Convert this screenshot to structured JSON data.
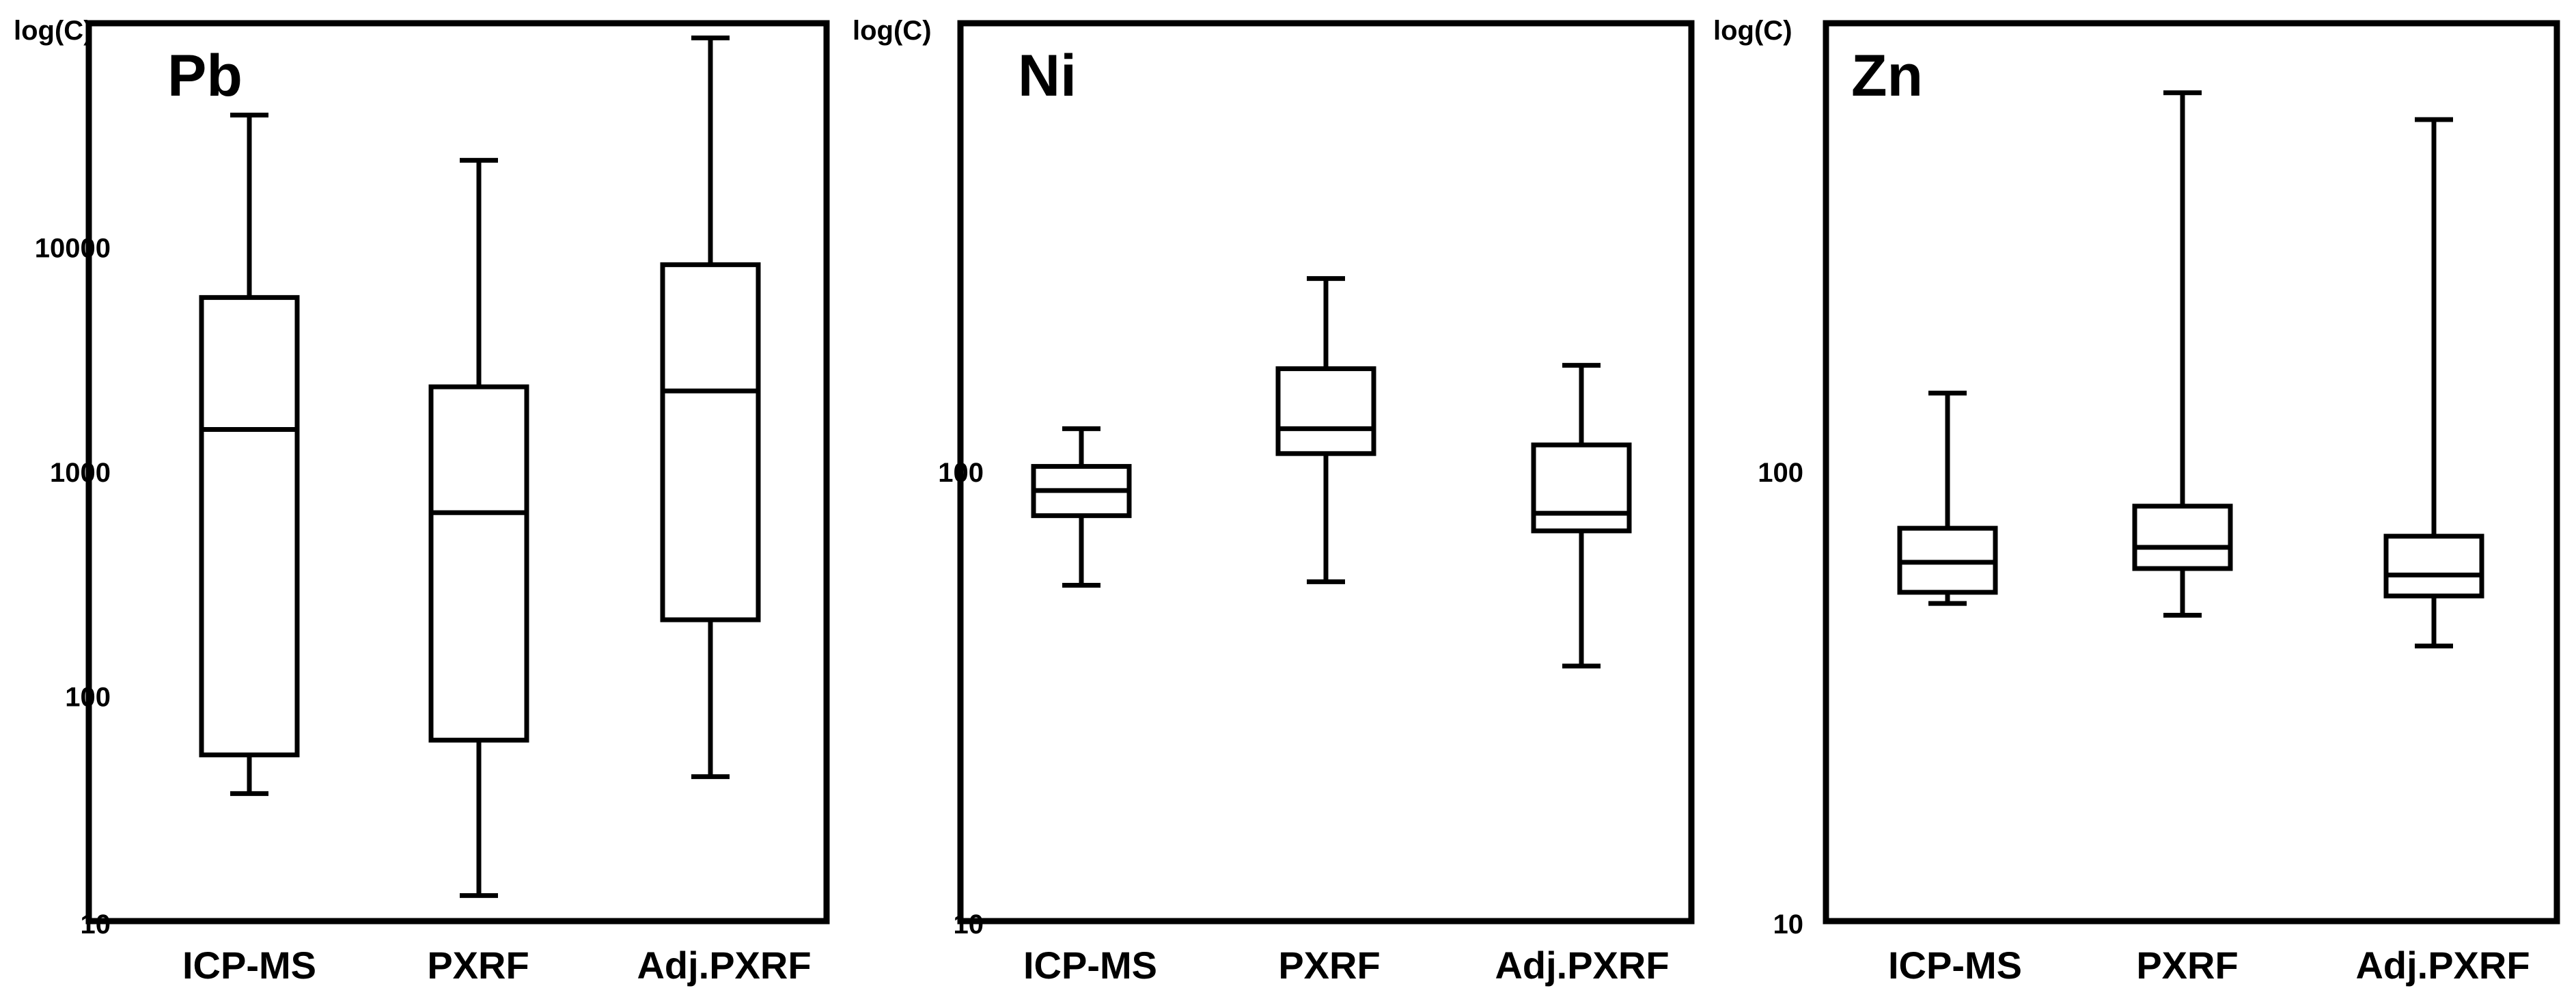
{
  "chart_data": [
    {
      "type": "box",
      "title": "Pb",
      "ylabel": "log(C)",
      "yscale": "log",
      "ylim": [
        10,
        100000
      ],
      "yticks": [
        "10",
        "100",
        "1000",
        "10000"
      ],
      "yticks_values": [
        10,
        100,
        1000,
        10000
      ],
      "categories": [
        "ICP-MS",
        "PXRF",
        "Adj.PXRF"
      ],
      "boxes": [
        {
          "min": 37,
          "q1": 55,
          "median": 1550,
          "q3": 6000,
          "max": 39000
        },
        {
          "min": 13,
          "q1": 64,
          "median": 660,
          "q3": 2400,
          "max": 24500
        },
        {
          "min": 44,
          "q1": 220,
          "median": 2300,
          "q3": 8400,
          "max": 86000
        }
      ]
    },
    {
      "type": "box",
      "title": "Ni",
      "ylabel": "log(C)",
      "yscale": "log",
      "ylim": [
        10,
        1000
      ],
      "yticks": [
        "10",
        "100"
      ],
      "yticks_values": [
        10,
        100
      ],
      "categories": [
        "ICP-MS",
        "PXRF",
        "Adj.PXRF"
      ],
      "boxes": [
        {
          "min": 56,
          "q1": 80,
          "median": 91,
          "q3": 103,
          "max": 125
        },
        {
          "min": 57,
          "q1": 110,
          "median": 125,
          "q3": 170,
          "max": 270
        },
        {
          "min": 37,
          "q1": 74,
          "median": 81,
          "q3": 115,
          "max": 173
        }
      ]
    },
    {
      "type": "box",
      "title": "Zn",
      "ylabel": "log(C)",
      "yscale": "log",
      "ylim": [
        10,
        1000
      ],
      "yticks": [
        "10",
        "100"
      ],
      "yticks_values": [
        10,
        100
      ],
      "categories": [
        "ICP-MS",
        "PXRF",
        "Adj.PXRF"
      ],
      "boxes": [
        {
          "min": 51,
          "q1": 54,
          "median": 63,
          "q3": 75,
          "max": 150
        },
        {
          "min": 48,
          "q1": 61,
          "median": 68,
          "q3": 84,
          "max": 700
        },
        {
          "min": 41,
          "q1": 53,
          "median": 59,
          "q3": 72,
          "max": 610
        }
      ]
    }
  ]
}
